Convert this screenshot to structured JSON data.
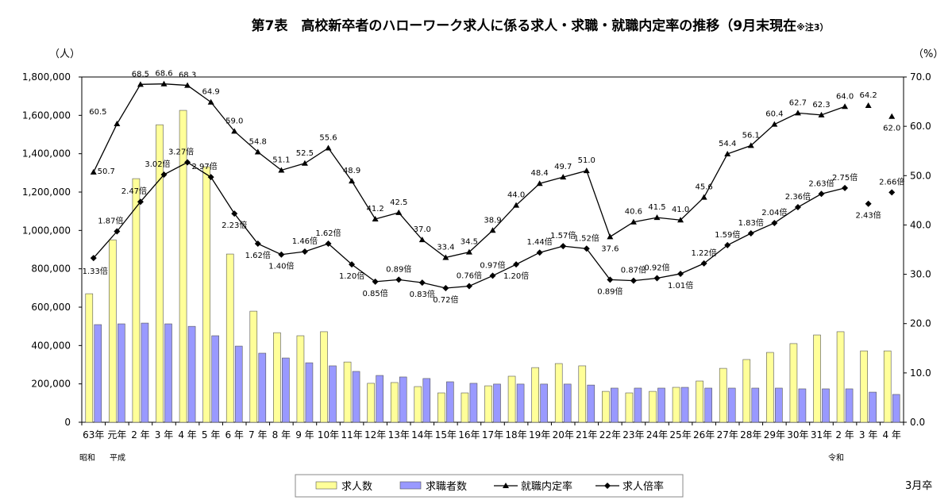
{
  "chart_data": {
    "type": "bar+line",
    "title": "第7表　高校新卒者のハローワーク求人に係る求人・求職・就職内定率の推移（9月末現在",
    "title_note": "※注3）",
    "left_unit": "（人）",
    "right_unit": "（%）",
    "left_ticks": [
      "0",
      "200,000",
      "400,000",
      "600,000",
      "800,000",
      "1,000,000",
      "1,200,000",
      "1,400,000",
      "1,600,000",
      "1,800,000"
    ],
    "right_ticks": [
      "0.0",
      "10.0",
      "20.0",
      "30.0",
      "40.0",
      "50.0",
      "60.0",
      "70.0"
    ],
    "ylim_left": [
      0,
      1800000
    ],
    "ylim_right": [
      0,
      70
    ],
    "categories": [
      "63年",
      "元年",
      "2 年",
      "3 年",
      "4 年",
      "5 年",
      "6 年",
      "7 年",
      "8 年",
      "9 年",
      "10年",
      "11年",
      "12年",
      "13年",
      "14年",
      "15年",
      "16年",
      "17年",
      "18年",
      "19年",
      "20年",
      "21年",
      "22年",
      "23年",
      "24年",
      "25年",
      "26年",
      "27年",
      "28年",
      "29年",
      "30年",
      "31年",
      "2 年",
      "3 年",
      "4 年"
    ],
    "era_labels": {
      "showa": "昭和",
      "heisei": "平成",
      "reiwa": "令和"
    },
    "xlabel": "3月卒",
    "series": [
      {
        "name": "求人数",
        "type": "bar",
        "axis": "left",
        "color": "#ffff99",
        "values": [
          670000,
          951000,
          1270000,
          1551000,
          1626000,
          1332000,
          877000,
          579000,
          467000,
          451000,
          472000,
          314000,
          203000,
          207000,
          186000,
          153000,
          153000,
          190000,
          240000,
          285000,
          306000,
          294000,
          161000,
          153000,
          161000,
          182000,
          215000,
          281000,
          327000,
          364000,
          410000,
          455000,
          472000,
          372000,
          372000
        ]
      },
      {
        "name": "求職者数",
        "type": "bar",
        "axis": "left",
        "color": "#9999ff",
        "values": [
          509000,
          513000,
          517000,
          513000,
          500000,
          451000,
          397000,
          360000,
          335000,
          310000,
          294000,
          265000,
          244000,
          236000,
          228000,
          211000,
          203000,
          199000,
          199000,
          199000,
          199000,
          194000,
          178000,
          178000,
          178000,
          182000,
          178000,
          178000,
          178000,
          178000,
          174000,
          174000,
          174000,
          157000,
          145000
        ]
      },
      {
        "name": "就職内定率",
        "type": "line",
        "axis": "right",
        "marker": "triangle",
        "values": [
          50.7,
          60.5,
          68.5,
          68.6,
          68.3,
          64.9,
          59.0,
          54.8,
          51.1,
          52.5,
          55.6,
          48.9,
          41.2,
          42.5,
          37.0,
          33.4,
          34.5,
          38.9,
          44.0,
          48.4,
          49.7,
          51.0,
          37.6,
          40.6,
          41.5,
          41.0,
          45.6,
          54.4,
          56.1,
          60.4,
          62.7,
          62.3,
          64.0,
          64.2,
          62.0
        ],
        "labels": [
          "50.7",
          "60.5",
          "68.5",
          "68.6",
          "68.3",
          "64.9",
          "59.0",
          "54.8",
          "51.1",
          "52.5",
          "55.6",
          "48.9",
          "41.2",
          "42.5",
          "37.0",
          "33.4",
          "34.5",
          "38.9",
          "44.0",
          "48.4",
          "49.7",
          "51.0",
          "37.6",
          "40.6",
          "41.5",
          "41.0",
          "45.6",
          "54.4",
          "56.1",
          "60.4",
          "62.7",
          "62.3",
          "64.0",
          "64.2",
          "62.0"
        ]
      },
      {
        "name": "求人倍率",
        "type": "line",
        "axis": "hidden",
        "marker": "diamond",
        "values": [
          1.33,
          1.87,
          2.47,
          3.02,
          3.27,
          2.97,
          2.23,
          1.62,
          1.4,
          1.46,
          1.62,
          1.2,
          0.85,
          0.89,
          0.83,
          0.72,
          0.76,
          0.97,
          1.2,
          1.44,
          1.57,
          1.52,
          0.89,
          0.87,
          0.92,
          1.01,
          1.22,
          1.59,
          1.83,
          2.04,
          2.36,
          2.63,
          2.75,
          2.43,
          2.66
        ],
        "labels": [
          "1.33倍",
          "1.87倍",
          "2.47倍",
          "3.02倍",
          "3.27倍",
          "2.97倍",
          "2.23倍",
          "1.62倍",
          "1.40倍",
          "1.46倍",
          "1.62倍",
          "1.20倍",
          "0.85倍",
          "0.89倍",
          "0.83倍",
          "0.72倍",
          "0.76倍",
          "0.97倍",
          "1.20倍",
          "1.44倍",
          "1.57倍",
          "1.52倍",
          "0.89倍",
          "0.87倍",
          "0.92倍",
          "1.01倍",
          "1.22倍",
          "1.59倍",
          "1.83倍",
          "2.04倍",
          "2.36倍",
          "2.63倍",
          "2.75倍",
          "2.43倍",
          "2.66倍"
        ]
      }
    ],
    "legend_position": "bottom"
  }
}
